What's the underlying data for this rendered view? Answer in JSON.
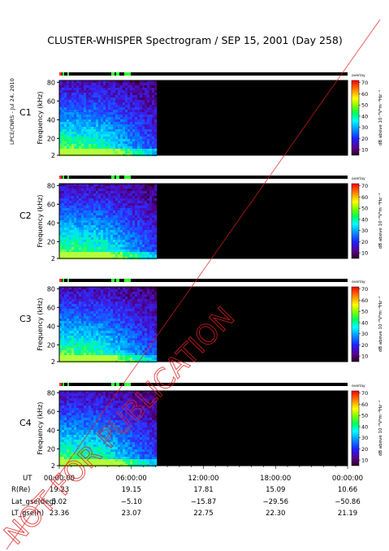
{
  "page": {
    "title": "CLUSTER-WHISPER Spectrogram / SEP 15, 2001 (Day 258)",
    "side_note": "LPCE/CNRS - Jul 24, 2010",
    "watermark": "NOT FOR PUBLICATION"
  },
  "chart_data": {
    "type": "heatmap",
    "panels": [
      {
        "name": "C1",
        "label_color": "#000000"
      },
      {
        "name": "C2",
        "label_color": "#000000"
      },
      {
        "name": "C3",
        "label_color": "#00c060"
      },
      {
        "name": "C4",
        "label_color": "#000000"
      }
    ],
    "ylabel": "Frequency (kHz)",
    "yticks": [
      2,
      20,
      40,
      60,
      80
    ],
    "ylim": [
      2,
      82
    ],
    "xlim_hours": [
      0,
      24
    ],
    "data_coverage_hours": [
      0,
      8
    ],
    "colorbar": {
      "ticks": [
        10,
        20,
        30,
        40,
        50,
        60,
        70
      ],
      "range": [
        5,
        72
      ],
      "label": "dB above 10⁻⁸V²m⁻²Hz⁻¹",
      "mode": "overlay"
    },
    "orbit_table": {
      "row_labels": [
        "UT",
        "R(Re)",
        "Lat_gse(deg)",
        "LT_gse(h)"
      ],
      "columns": [
        {
          "UT": "00:00:00",
          "R(Re)": "19.23",
          "Lat_gse(deg)": "5.02",
          "LT_gse(h)": "23.36"
        },
        {
          "UT": "06:00:00",
          "R(Re)": "19.15",
          "Lat_gse(deg)": "−5.10",
          "LT_gse(h)": "23.07"
        },
        {
          "UT": "12:00:00",
          "R(Re)": "17.81",
          "Lat_gse(deg)": "−15.87",
          "LT_gse(h)": "22.75"
        },
        {
          "UT": "18:00:00",
          "R(Re)": "15.09",
          "Lat_gse(deg)": "−29.56",
          "LT_gse(h)": "22.30"
        },
        {
          "UT": "00:00:00",
          "R(Re)": "10.66",
          "Lat_gse(deg)": "−50.86",
          "LT_gse(h)": "21.19"
        }
      ]
    }
  }
}
